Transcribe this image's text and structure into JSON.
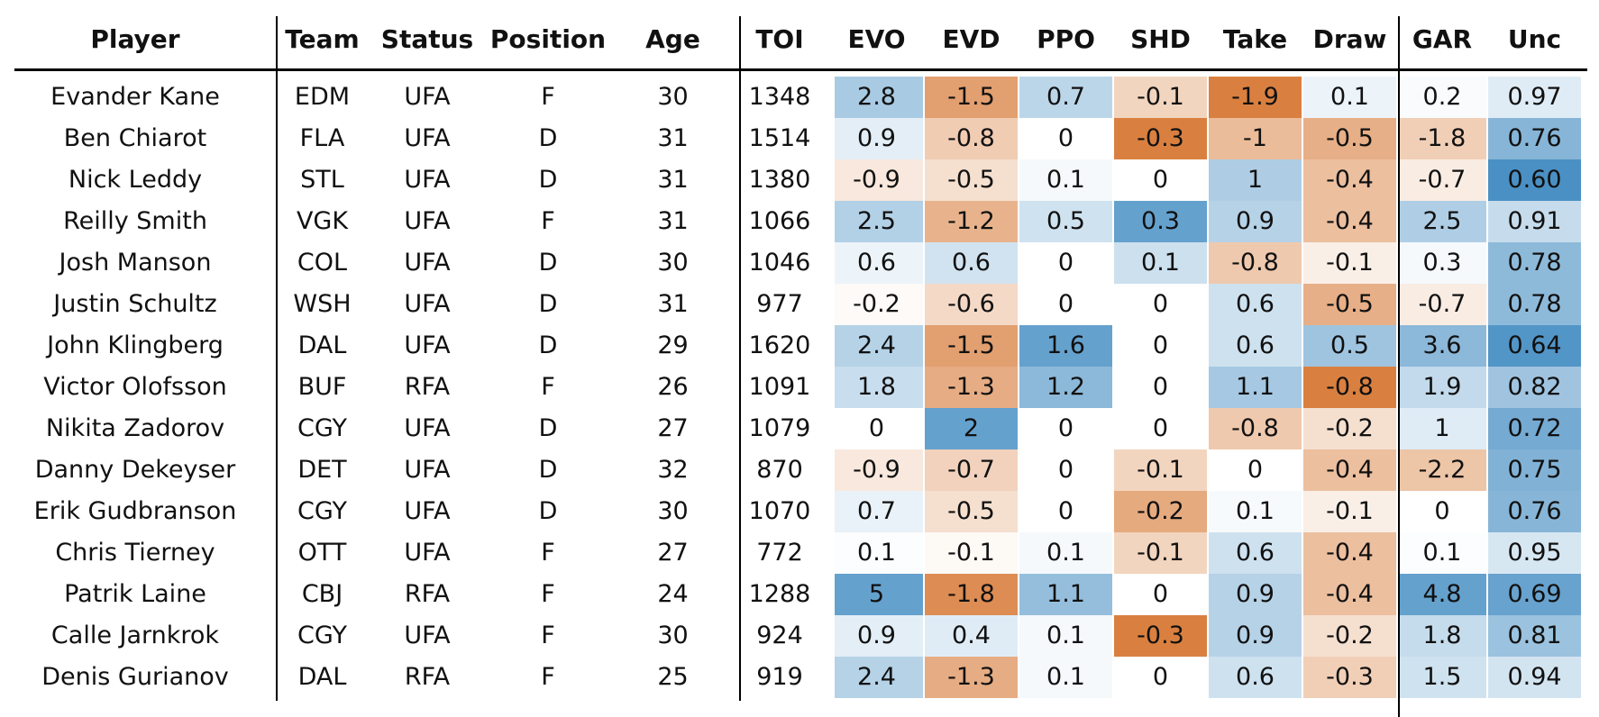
{
  "chart_data": {
    "type": "table",
    "columns": [
      "Player",
      "Team",
      "Status",
      "Position",
      "Age",
      "TOI",
      "EVO",
      "EVD",
      "PPO",
      "SHD",
      "Take",
      "Draw",
      "GAR",
      "Unc"
    ],
    "rows": [
      [
        "Evander Kane",
        "EDM",
        "UFA",
        "F",
        "30",
        "1348",
        "2.8",
        "-1.5",
        "0.7",
        "-0.1",
        "-1.9",
        "0.1",
        "0.2",
        "0.97"
      ],
      [
        "Ben Chiarot",
        "FLA",
        "UFA",
        "D",
        "31",
        "1514",
        "0.9",
        "-0.8",
        "0",
        "-0.3",
        "-1",
        "-0.5",
        "-1.8",
        "0.76"
      ],
      [
        "Nick Leddy",
        "STL",
        "UFA",
        "D",
        "31",
        "1380",
        "-0.9",
        "-0.5",
        "0.1",
        "0",
        "1",
        "-0.4",
        "-0.7",
        "0.60"
      ],
      [
        "Reilly Smith",
        "VGK",
        "UFA",
        "F",
        "31",
        "1066",
        "2.5",
        "-1.2",
        "0.5",
        "0.3",
        "0.9",
        "-0.4",
        "2.5",
        "0.91"
      ],
      [
        "Josh Manson",
        "COL",
        "UFA",
        "D",
        "30",
        "1046",
        "0.6",
        "0.6",
        "0",
        "0.1",
        "-0.8",
        "-0.1",
        "0.3",
        "0.78"
      ],
      [
        "Justin Schultz",
        "WSH",
        "UFA",
        "D",
        "31",
        "977",
        "-0.2",
        "-0.6",
        "0",
        "0",
        "0.6",
        "-0.5",
        "-0.7",
        "0.78"
      ],
      [
        "John Klingberg",
        "DAL",
        "UFA",
        "D",
        "29",
        "1620",
        "2.4",
        "-1.5",
        "1.6",
        "0",
        "0.6",
        "0.5",
        "3.6",
        "0.64"
      ],
      [
        "Victor Olofsson",
        "BUF",
        "RFA",
        "F",
        "26",
        "1091",
        "1.8",
        "-1.3",
        "1.2",
        "0",
        "1.1",
        "-0.8",
        "1.9",
        "0.82"
      ],
      [
        "Nikita Zadorov",
        "CGY",
        "UFA",
        "D",
        "27",
        "1079",
        "0",
        "2",
        "0",
        "0",
        "-0.8",
        "-0.2",
        "1",
        "0.72"
      ],
      [
        "Danny Dekeyser",
        "DET",
        "UFA",
        "D",
        "32",
        "870",
        "-0.9",
        "-0.7",
        "0",
        "-0.1",
        "0",
        "-0.4",
        "-2.2",
        "0.75"
      ],
      [
        "Erik Gudbranson",
        "CGY",
        "UFA",
        "D",
        "30",
        "1070",
        "0.7",
        "-0.5",
        "0",
        "-0.2",
        "0.1",
        "-0.1",
        "0",
        "0.76"
      ],
      [
        "Chris Tierney",
        "OTT",
        "UFA",
        "F",
        "27",
        "772",
        "0.1",
        "-0.1",
        "0.1",
        "-0.1",
        "0.6",
        "-0.4",
        "0.1",
        "0.95"
      ],
      [
        "Patrik Laine",
        "CBJ",
        "RFA",
        "F",
        "24",
        "1288",
        "5",
        "-1.8",
        "1.1",
        "0",
        "0.9",
        "-0.4",
        "4.8",
        "0.69"
      ],
      [
        "Calle Jarnkrok",
        "CGY",
        "UFA",
        "F",
        "30",
        "924",
        "0.9",
        "0.4",
        "0.1",
        "-0.3",
        "0.9",
        "-0.2",
        "1.8",
        "0.81"
      ],
      [
        "Denis Gurianov",
        "DAL",
        "RFA",
        "F",
        "25",
        "919",
        "2.4",
        "-1.3",
        "0.1",
        "0",
        "0.6",
        "-0.3",
        "1.5",
        "0.94"
      ]
    ],
    "shaded_columns": [
      "EVO",
      "EVD",
      "PPO",
      "SHD",
      "Take",
      "Draw",
      "GAR"
    ],
    "uncertainty_column": "Unc",
    "color_scale": {
      "positive": "#4a90c4",
      "negative": "#d2691e",
      "neutral": "#ffffff"
    }
  }
}
